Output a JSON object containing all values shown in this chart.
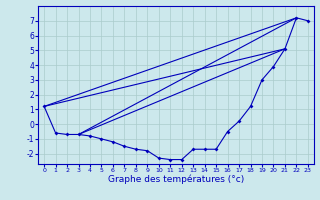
{
  "xlabel": "Graphe des températures (°c)",
  "background_color": "#cce8ec",
  "grid_color": "#aacccc",
  "line_color": "#0000bb",
  "xlim": [
    -0.5,
    23.5
  ],
  "ylim": [
    -2.7,
    8.0
  ],
  "xticks": [
    0,
    1,
    2,
    3,
    4,
    5,
    6,
    7,
    8,
    9,
    10,
    11,
    12,
    13,
    14,
    15,
    16,
    17,
    18,
    19,
    20,
    21,
    22,
    23
  ],
  "yticks": [
    -2,
    -1,
    0,
    1,
    2,
    3,
    4,
    5,
    6,
    7
  ],
  "hours": [
    0,
    1,
    2,
    3,
    4,
    5,
    6,
    7,
    8,
    9,
    10,
    11,
    12,
    13,
    14,
    15,
    16,
    17,
    18,
    19,
    20,
    21,
    22,
    23
  ],
  "temps": [
    1.2,
    -0.6,
    -0.7,
    -0.7,
    -0.8,
    -1.0,
    -1.2,
    -1.5,
    -1.7,
    -1.8,
    -2.3,
    -2.4,
    -2.4,
    -1.7,
    -1.7,
    -1.7,
    -0.5,
    0.2,
    1.2,
    3.0,
    3.9,
    5.1,
    7.2,
    7.0
  ],
  "extra_lines": [
    [
      0,
      22
    ],
    [
      0,
      21
    ],
    [
      3,
      22
    ],
    [
      3,
      21
    ]
  ]
}
